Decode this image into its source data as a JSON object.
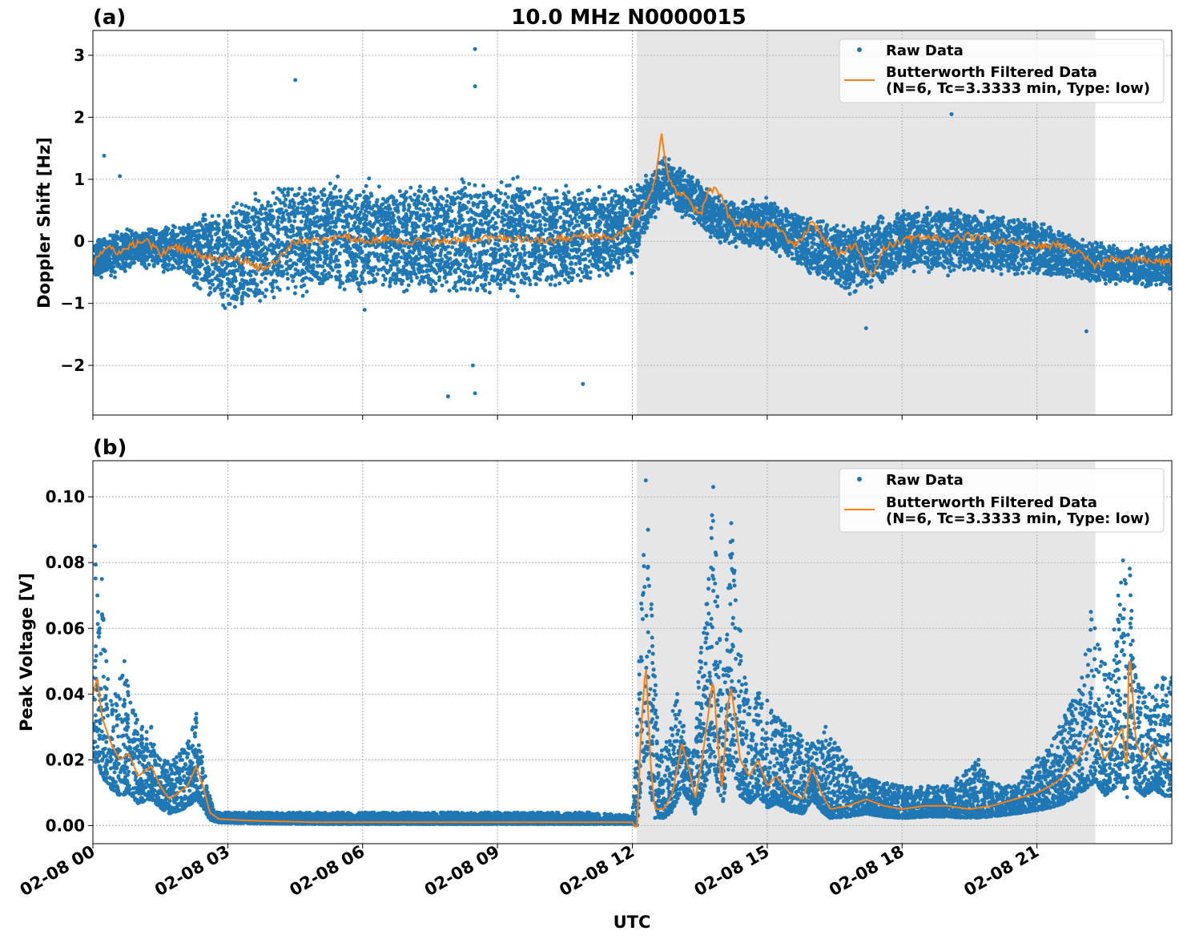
{
  "figure_title": "10.0 MHz N0000015",
  "xlabel": "UTC",
  "x_tick_labels": [
    "02-08 00",
    "02-08 03",
    "02-08 06",
    "02-08 09",
    "02-08 12",
    "02-08 15",
    "02-08 18",
    "02-08 21"
  ],
  "colors": {
    "raw": "#1f77b4",
    "filtered": "#ff7f0e",
    "shade": "#e6e6e6",
    "grid": "#b0b0b0"
  },
  "chart_data": [
    {
      "type": "scatter",
      "panel_label": "(a)",
      "title": "10.0 MHz N0000015",
      "xlabel": "UTC",
      "ylabel": "Doppler Shift [Hz]",
      "x_unit": "hours UTC since 2024-02-08 00:00",
      "xlim": [
        0,
        24
      ],
      "ylim": [
        -2.8,
        3.4
      ],
      "y_ticks": [
        -2,
        -1,
        0,
        1,
        2,
        3
      ],
      "y_tick_labels": [
        "−2",
        "−1",
        "0",
        "1",
        "2",
        "3"
      ],
      "grid": true,
      "legend_position": "top-right",
      "shaded_interval_hours": [
        12.1,
        22.3
      ],
      "series": [
        {
          "name": "Raw Data",
          "style": "points",
          "center_x": [
            0,
            1,
            2,
            2.5,
            3,
            4,
            5,
            6,
            7,
            8,
            9,
            10,
            11,
            12,
            12.3,
            12.7,
            13.5,
            14,
            15,
            16,
            17,
            18,
            19,
            20,
            21,
            22,
            23,
            24
          ],
          "center_y": [
            -0.3,
            -0.1,
            -0.1,
            -0.2,
            -0.3,
            0.0,
            0.1,
            0.0,
            0.05,
            0.05,
            0.05,
            0.05,
            0.1,
            0.2,
            0.6,
            1.0,
            0.6,
            0.3,
            0.3,
            -0.1,
            -0.3,
            0.0,
            0.0,
            0.0,
            -0.1,
            -0.3,
            -0.4,
            -0.4
          ],
          "half_spread": [
            0.3,
            0.3,
            0.35,
            0.6,
            0.8,
            0.8,
            0.8,
            0.8,
            0.8,
            0.8,
            0.8,
            0.75,
            0.7,
            0.6,
            0.4,
            0.35,
            0.35,
            0.35,
            0.35,
            0.4,
            0.5,
            0.45,
            0.45,
            0.45,
            0.4,
            0.3,
            0.3,
            0.3
          ],
          "outliers": [
            [
              0.25,
              1.38
            ],
            [
              0.6,
              1.05
            ],
            [
              8.5,
              3.1
            ],
            [
              8.5,
              2.5
            ],
            [
              4.5,
              2.6
            ],
            [
              7.9,
              -2.5
            ],
            [
              8.5,
              -2.45
            ],
            [
              8.45,
              -2.0
            ],
            [
              10.9,
              -2.3
            ],
            [
              19.1,
              2.05
            ],
            [
              17.2,
              -1.4
            ],
            [
              22.1,
              -1.45
            ]
          ]
        },
        {
          "name": "Butterworth Filtered Data\n(N=6, Tc=3.3333 min, Type: low)",
          "style": "line",
          "x": [
            0,
            0.3,
            0.6,
            0.9,
            1.2,
            1.5,
            1.8,
            2.1,
            2.5,
            2.8,
            3.0,
            3.3,
            3.6,
            3.9,
            4.2,
            4.5,
            5.0,
            5.5,
            6.0,
            6.5,
            7.0,
            7.5,
            8.0,
            8.5,
            9.0,
            9.5,
            10.0,
            10.5,
            11.0,
            11.5,
            11.9,
            12.1,
            12.3,
            12.5,
            12.65,
            12.8,
            13.0,
            13.2,
            13.5,
            13.7,
            13.9,
            14.2,
            14.5,
            15.0,
            15.3,
            15.6,
            16.0,
            16.3,
            16.6,
            17.0,
            17.3,
            17.6,
            18.0,
            18.5,
            19.0,
            19.5,
            20.0,
            20.5,
            21.0,
            21.5,
            22.0,
            22.3,
            22.6,
            23.0,
            23.5,
            24.0
          ],
          "y": [
            -0.35,
            -0.1,
            -0.2,
            -0.05,
            0.0,
            -0.2,
            -0.1,
            -0.15,
            -0.25,
            -0.3,
            -0.25,
            -0.3,
            -0.4,
            -0.45,
            -0.2,
            0.0,
            0.0,
            0.1,
            0.0,
            0.05,
            0.0,
            0.0,
            0.0,
            0.05,
            0.05,
            0.05,
            0.0,
            0.05,
            0.1,
            0.05,
            0.2,
            0.4,
            0.6,
            1.0,
            1.75,
            1.0,
            0.8,
            0.7,
            0.4,
            0.8,
            0.85,
            0.3,
            0.3,
            0.25,
            0.2,
            -0.1,
            0.3,
            0.0,
            -0.2,
            -0.05,
            -0.6,
            -0.1,
            0.0,
            0.1,
            0.0,
            0.1,
            0.0,
            0.0,
            -0.1,
            -0.05,
            -0.2,
            -0.4,
            -0.3,
            -0.3,
            -0.3,
            -0.35
          ]
        }
      ]
    },
    {
      "type": "scatter",
      "panel_label": "(b)",
      "title": "",
      "xlabel": "UTC",
      "ylabel": "Peak Voltage [V]",
      "x_unit": "hours UTC since 2024-02-08 00:00",
      "xlim": [
        0,
        24
      ],
      "ylim": [
        -0.0055,
        0.111
      ],
      "y_ticks": [
        0.0,
        0.02,
        0.04,
        0.06,
        0.08,
        0.1
      ],
      "y_tick_labels": [
        "0.00",
        "0.02",
        "0.04",
        "0.06",
        "0.08",
        "0.10"
      ],
      "grid": true,
      "legend_position": "top-right",
      "shaded_interval_hours": [
        12.1,
        22.3
      ],
      "series": [
        {
          "name": "Raw Data",
          "style": "points",
          "points": [
            [
              0.0,
              0.045
            ],
            [
              0.05,
              0.085
            ],
            [
              0.1,
              0.07
            ],
            [
              0.15,
              0.06
            ],
            [
              0.2,
              0.075
            ],
            [
              0.3,
              0.05
            ],
            [
              0.5,
              0.04
            ],
            [
              0.7,
              0.05
            ],
            [
              0.9,
              0.035
            ],
            [
              1.1,
              0.03
            ],
            [
              1.3,
              0.03
            ],
            [
              1.5,
              0.02
            ],
            [
              1.8,
              0.02
            ],
            [
              2.1,
              0.025
            ],
            [
              2.3,
              0.034
            ],
            [
              2.5,
              0.015
            ],
            [
              2.7,
              0.004
            ],
            [
              3.5,
              0.004
            ],
            [
              5.0,
              0.004
            ],
            [
              7.0,
              0.004
            ],
            [
              9.0,
              0.004
            ],
            [
              11.0,
              0.004
            ],
            [
              12.0,
              0.003
            ],
            [
              12.15,
              0.05
            ],
            [
              12.3,
              0.105
            ],
            [
              12.35,
              0.09
            ],
            [
              12.6,
              0.02
            ],
            [
              13.0,
              0.04
            ],
            [
              13.3,
              0.02
            ],
            [
              13.5,
              0.05
            ],
            [
              13.7,
              0.075
            ],
            [
              13.8,
              0.103
            ],
            [
              14.0,
              0.04
            ],
            [
              14.2,
              0.092
            ],
            [
              14.5,
              0.045
            ],
            [
              15.0,
              0.038
            ],
            [
              15.5,
              0.03
            ],
            [
              16.0,
              0.025
            ],
            [
              16.3,
              0.03
            ],
            [
              17.0,
              0.015
            ],
            [
              18.0,
              0.012
            ],
            [
              19.0,
              0.012
            ],
            [
              19.7,
              0.02
            ],
            [
              20.0,
              0.013
            ],
            [
              20.5,
              0.012
            ],
            [
              21.0,
              0.02
            ],
            [
              21.5,
              0.03
            ],
            [
              22.0,
              0.045
            ],
            [
              22.2,
              0.065
            ],
            [
              22.6,
              0.045
            ],
            [
              23.0,
              0.095
            ],
            [
              23.2,
              0.045
            ],
            [
              23.5,
              0.04
            ],
            [
              23.8,
              0.045
            ],
            [
              24.0,
              0.045
            ]
          ]
        },
        {
          "name": "Butterworth Filtered Data\n(N=6, Tc=3.3333 min, Type: low)",
          "style": "line",
          "x": [
            0,
            0.1,
            0.2,
            0.4,
            0.6,
            0.8,
            1.0,
            1.3,
            1.5,
            1.7,
            1.9,
            2.1,
            2.3,
            2.45,
            2.6,
            2.8,
            3.5,
            5.0,
            7.0,
            9.0,
            11.0,
            12.0,
            12.1,
            12.2,
            12.3,
            12.4,
            12.5,
            12.7,
            12.9,
            13.1,
            13.3,
            13.4,
            13.55,
            13.7,
            13.8,
            13.9,
            14.0,
            14.1,
            14.2,
            14.4,
            14.6,
            14.8,
            15.0,
            15.2,
            15.5,
            15.8,
            16.0,
            16.2,
            16.4,
            16.8,
            17.2,
            17.6,
            18.0,
            18.5,
            19.0,
            19.5,
            20.0,
            20.5,
            21.0,
            21.3,
            21.6,
            21.9,
            22.1,
            22.3,
            22.5,
            22.7,
            22.9,
            23.0,
            23.05,
            23.2,
            23.4,
            23.6,
            23.8,
            24.0
          ],
          "y": [
            0.04,
            0.045,
            0.033,
            0.025,
            0.02,
            0.022,
            0.015,
            0.018,
            0.012,
            0.008,
            0.01,
            0.012,
            0.018,
            0.012,
            0.004,
            0.002,
            0.0015,
            0.001,
            0.001,
            0.001,
            0.001,
            0.001,
            -0.001,
            0.03,
            0.05,
            0.02,
            0.005,
            0.005,
            0.01,
            0.025,
            0.015,
            0.008,
            0.02,
            0.035,
            0.045,
            0.025,
            0.01,
            0.035,
            0.042,
            0.02,
            0.015,
            0.02,
            0.012,
            0.015,
            0.01,
            0.008,
            0.018,
            0.01,
            0.005,
            0.006,
            0.008,
            0.006,
            0.005,
            0.006,
            0.006,
            0.005,
            0.006,
            0.008,
            0.01,
            0.012,
            0.015,
            0.02,
            0.025,
            0.03,
            0.02,
            0.025,
            0.03,
            0.015,
            0.055,
            0.025,
            0.02,
            0.025,
            0.02,
            0.02
          ]
        }
      ]
    }
  ]
}
